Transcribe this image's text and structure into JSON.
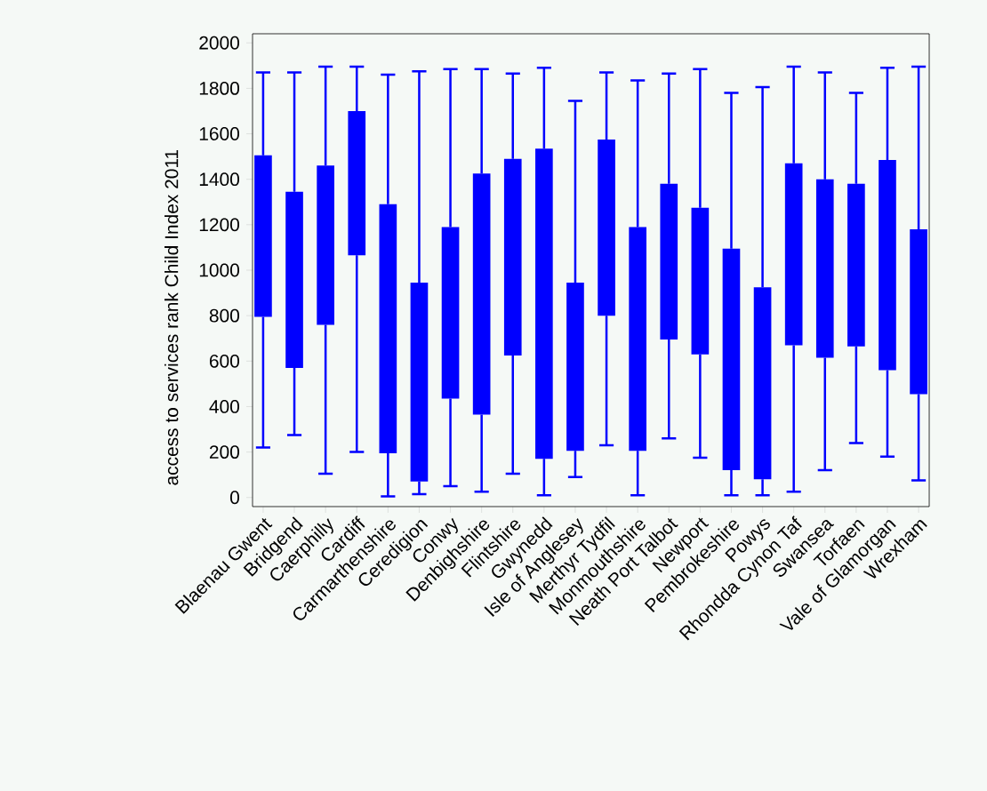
{
  "chart_data": {
    "type": "box",
    "ylabel": "access to services rank Child Index 2011",
    "categories": [
      "Blaenau Gwent",
      "Bridgend",
      "Caerphilly",
      "Cardiff",
      "Carmarthenshire",
      "Ceredigion",
      "Conwy",
      "Denbighshire",
      "Flintshire",
      "Gwynedd",
      "Isle of Anglesey",
      "Merthyr Tydfil",
      "Monmouthshire",
      "Neath Port Talbot",
      "Newport",
      "Pembrokeshire",
      "Powys",
      "Rhondda Cynon Taf",
      "Swansea",
      "Torfaen",
      "Vale of Glamorgan",
      "Wrexham"
    ],
    "color": "#0000ff",
    "boxes": [
      {
        "low": 220,
        "q1": 795,
        "q3": 1505,
        "high": 1870
      },
      {
        "low": 275,
        "q1": 570,
        "q3": 1345,
        "high": 1870
      },
      {
        "low": 105,
        "q1": 760,
        "q3": 1460,
        "high": 1895
      },
      {
        "low": 200,
        "q1": 1065,
        "q3": 1700,
        "high": 1895
      },
      {
        "low": 5,
        "q1": 195,
        "q3": 1290,
        "high": 1860
      },
      {
        "low": 15,
        "q1": 70,
        "q3": 945,
        "high": 1875
      },
      {
        "low": 50,
        "q1": 435,
        "q3": 1190,
        "high": 1885
      },
      {
        "low": 25,
        "q1": 365,
        "q3": 1425,
        "high": 1885
      },
      {
        "low": 105,
        "q1": 625,
        "q3": 1490,
        "high": 1865
      },
      {
        "low": 10,
        "q1": 170,
        "q3": 1535,
        "high": 1890
      },
      {
        "low": 90,
        "q1": 205,
        "q3": 945,
        "high": 1745
      },
      {
        "low": 230,
        "q1": 800,
        "q3": 1575,
        "high": 1870
      },
      {
        "low": 10,
        "q1": 205,
        "q3": 1190,
        "high": 1835
      },
      {
        "low": 260,
        "q1": 695,
        "q3": 1380,
        "high": 1865
      },
      {
        "low": 175,
        "q1": 630,
        "q3": 1275,
        "high": 1885
      },
      {
        "low": 10,
        "q1": 120,
        "q3": 1095,
        "high": 1780
      },
      {
        "low": 10,
        "q1": 80,
        "q3": 925,
        "high": 1805
      },
      {
        "low": 25,
        "q1": 670,
        "q3": 1470,
        "high": 1895
      },
      {
        "low": 120,
        "q1": 615,
        "q3": 1400,
        "high": 1870
      },
      {
        "low": 240,
        "q1": 665,
        "q3": 1380,
        "high": 1780
      },
      {
        "low": 180,
        "q1": 560,
        "q3": 1485,
        "high": 1890
      },
      {
        "low": 75,
        "q1": 455,
        "q3": 1180,
        "high": 1895
      }
    ],
    "ylim": [
      -40,
      2040
    ],
    "yticks": [
      0,
      200,
      400,
      600,
      800,
      1000,
      1200,
      1400,
      1600,
      1800,
      2000
    ],
    "grid": false
  }
}
